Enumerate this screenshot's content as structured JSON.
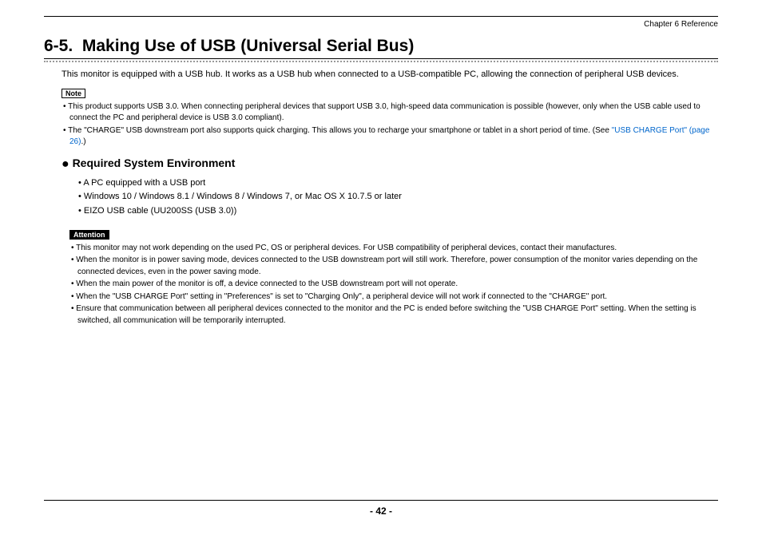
{
  "header": {
    "chapter_ref": "Chapter 6   Reference"
  },
  "title": {
    "number": "6-5.",
    "text": "Making Use of USB (Universal Serial Bus)"
  },
  "intro": "This monitor is equipped with a USB hub. It works as a USB hub when connected to a USB-compatible PC, allowing the connection of peripheral USB devices.",
  "note": {
    "label": "Note",
    "items": [
      {
        "text": "This product supports USB 3.0. When connecting peripheral devices that support USB 3.0, high-speed data communication is possible (however, only when the USB cable used to connect the PC and peripheral device is USB 3.0 compliant)."
      },
      {
        "text_before": "The \"CHARGE\" USB downstream port also supports quick charging. This allows you to recharge your smartphone or tablet in a short period of time. (See ",
        "link_text": "\"USB CHARGE Port\" (page 26)",
        "text_after": ".)"
      }
    ]
  },
  "required_env": {
    "heading": "Required System Environment",
    "items": [
      "A PC equipped with a USB port",
      "Windows 10 / Windows 8.1 / Windows 8 / Windows 7, or Mac OS X 10.7.5 or later",
      "EIZO USB cable (UU200SS (USB 3.0))"
    ]
  },
  "attention": {
    "label": "Attention",
    "items": [
      "This monitor may not work depending on the used PC, OS or peripheral devices. For USB compatibility of peripheral devices, contact their manufactures.",
      "When the monitor is in power saving mode, devices connected to the USB downstream port will still work. Therefore, power consumption of the monitor varies depending on the connected devices, even in the power saving mode.",
      "When the main power of the monitor is off, a device connected to the USB downstream port will not operate.",
      "When the \"USB CHARGE Port\" setting in \"Preferences\" is set to \"Charging Only\", a peripheral device will not work if connected to the \"CHARGE\" port.",
      "Ensure that communication between all peripheral devices connected to the monitor and the PC is ended before switching the \"USB CHARGE Port\" setting. When the setting is switched, all communication will be temporarily interrupted."
    ]
  },
  "footer": {
    "page_number": "- 42 -"
  },
  "colors": {
    "link": "#0066cc",
    "text": "#000000",
    "background": "#ffffff"
  }
}
